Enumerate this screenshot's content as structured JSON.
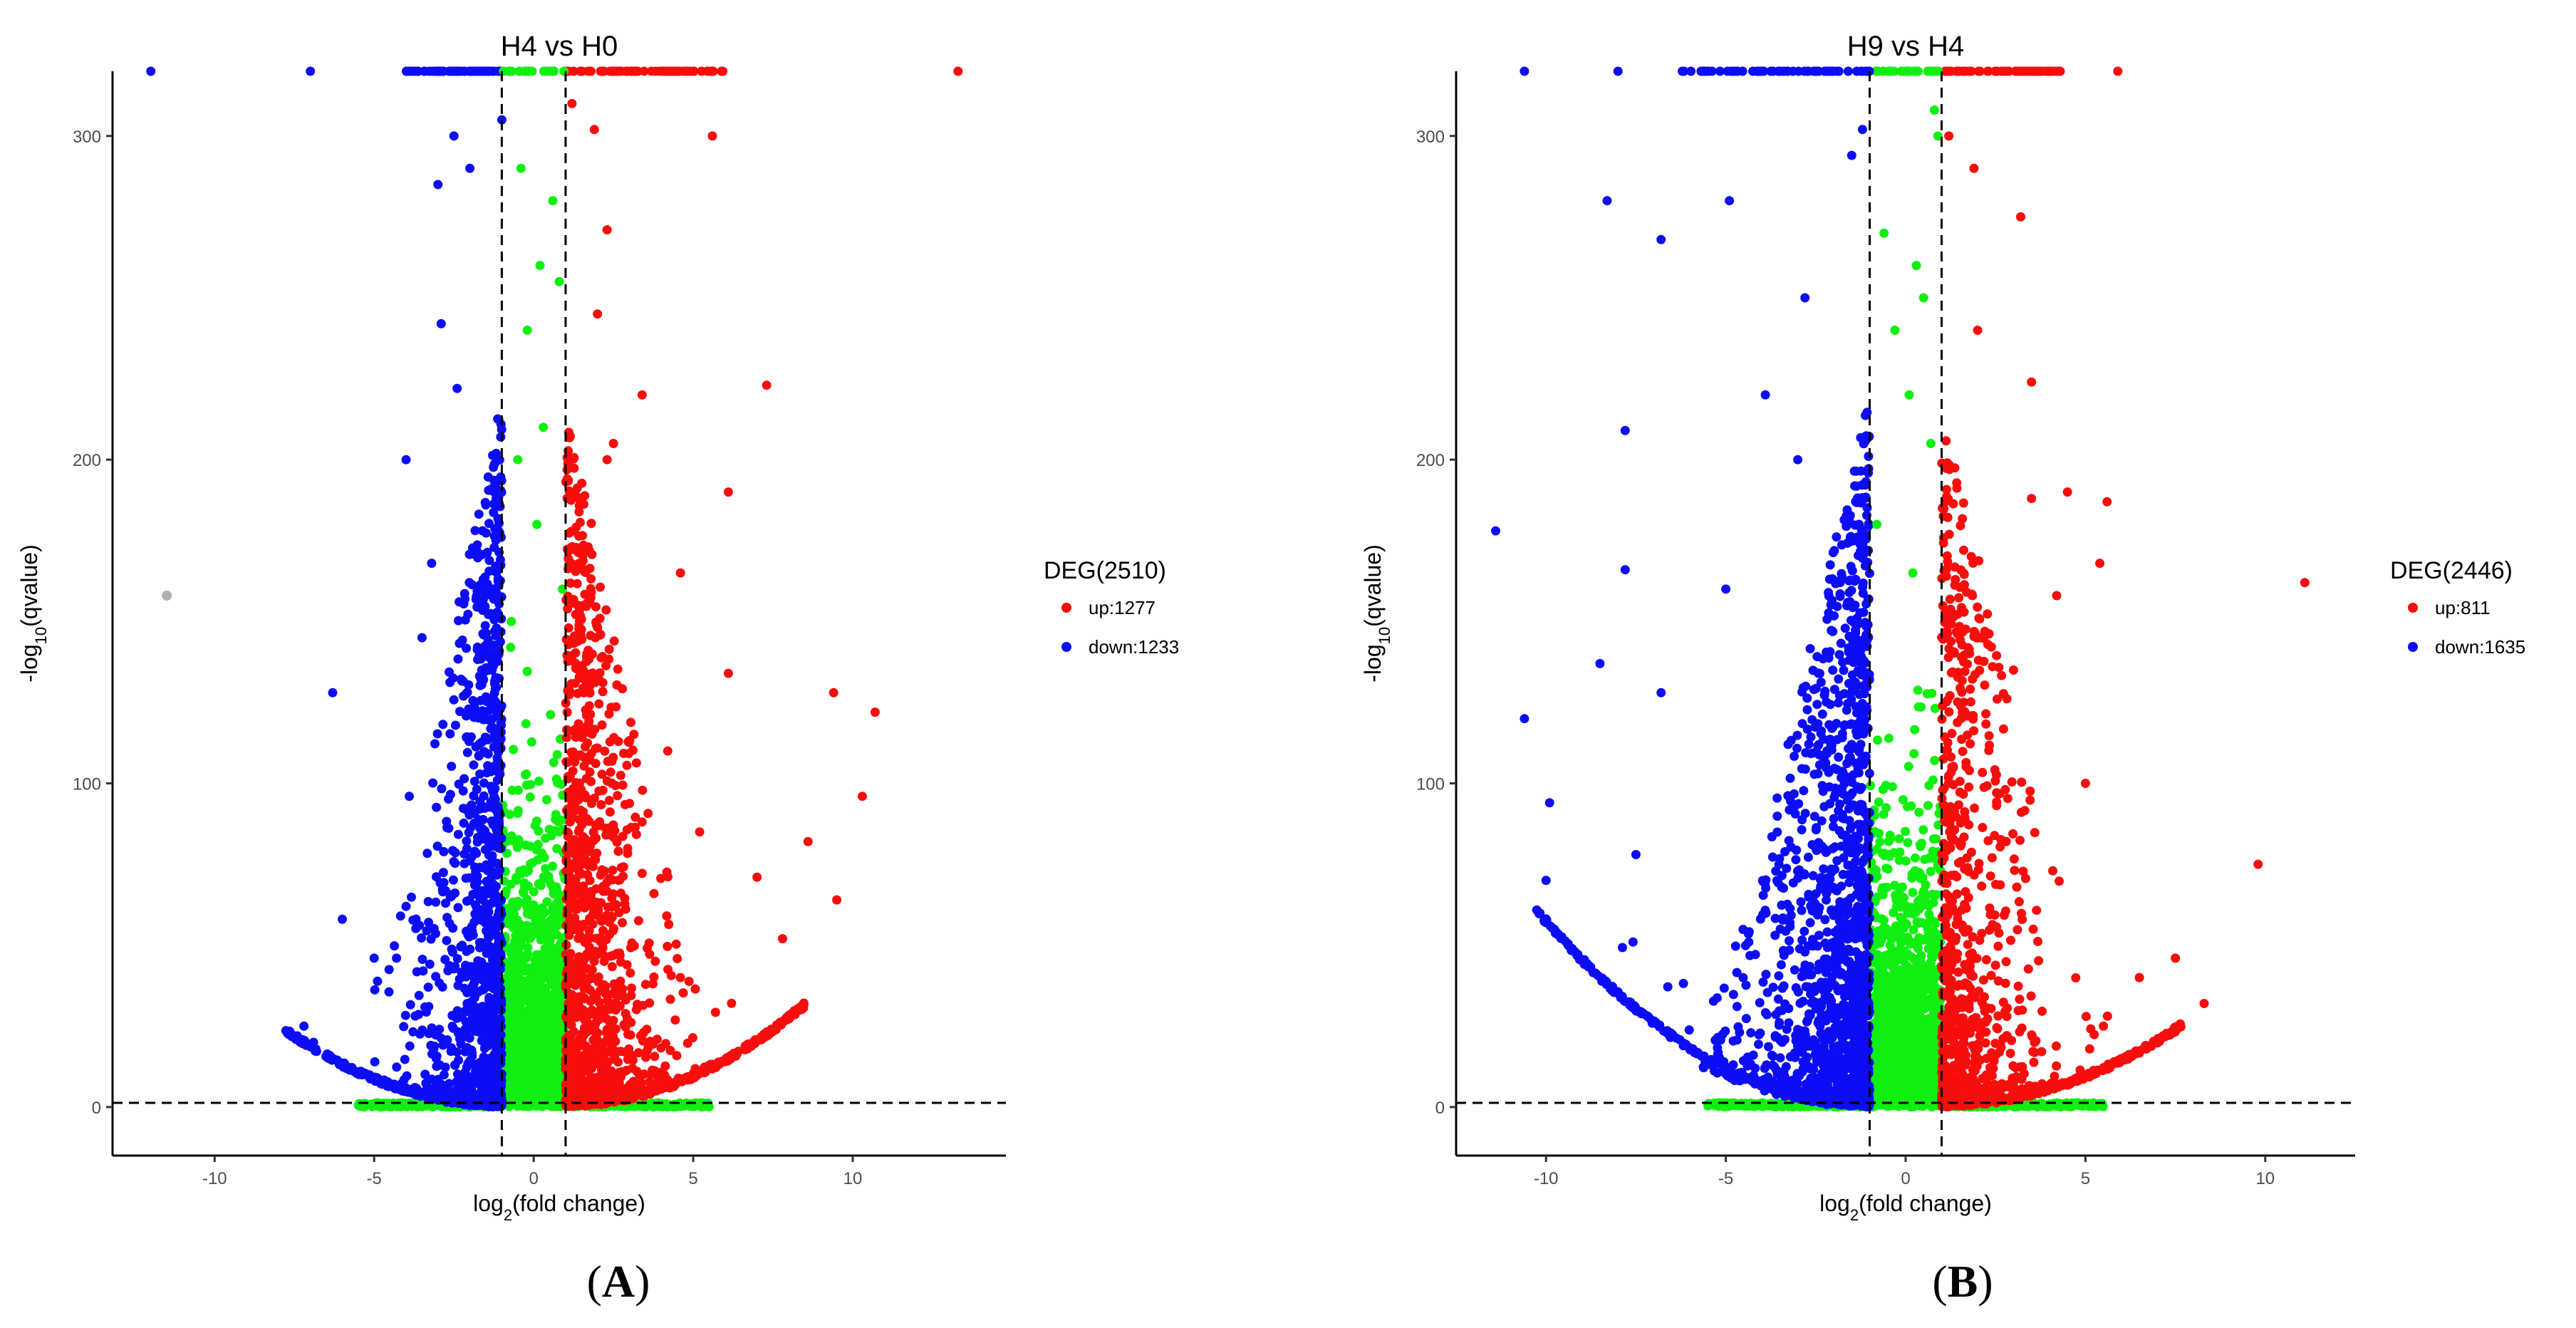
{
  "colors": {
    "up": "#f80d0d",
    "down": "#0d0df5",
    "ns": "#10f010",
    "outlier": "#b0b0b0",
    "axis": "#000000",
    "tick": "#4d4d4d"
  },
  "chart_data": [
    {
      "type": "scatter",
      "panel_label": "A",
      "title": "H4 vs H0",
      "xlabel": "log2(fold change)",
      "ylabel": "-log10(qvalue)",
      "xlim": [
        -13.2,
        14.8
      ],
      "ylim": [
        -15,
        320
      ],
      "xticks": [
        -10,
        -5,
        0,
        5,
        10
      ],
      "yticks": [
        0,
        100,
        200,
        300
      ],
      "fc_threshold": [
        -1,
        1
      ],
      "q_threshold": 1.3,
      "legend": {
        "title": "DEG(2510)",
        "placement": "right",
        "entries": [
          {
            "series": "up",
            "label": "up:1277"
          },
          {
            "series": "down",
            "label": "down:1233"
          }
        ]
      },
      "series": [
        {
          "name": "up",
          "count": 1277,
          "highlights": [
            [
              13.3,
              320
            ],
            [
              5.6,
              300
            ],
            [
              1.9,
              302
            ],
            [
              7.3,
              223
            ],
            [
              6.1,
              190
            ],
            [
              4.6,
              165
            ],
            [
              9.4,
              128
            ],
            [
              10.7,
              122
            ],
            [
              10.3,
              96
            ],
            [
              6.1,
              134
            ],
            [
              8.6,
              82
            ],
            [
              7.0,
              71
            ],
            [
              9.5,
              64
            ],
            [
              7.8,
              52
            ],
            [
              2.3,
              271
            ],
            [
              2.0,
              245
            ],
            [
              3.4,
              220
            ],
            [
              2.5,
              205
            ],
            [
              1.2,
              310
            ],
            [
              2.3,
              200
            ],
            [
              4.2,
              110
            ],
            [
              5.2,
              85
            ]
          ]
        },
        {
          "name": "down",
          "count": 1233,
          "highlights": [
            [
              -12.0,
              320
            ],
            [
              -7.0,
              320
            ],
            [
              -1.0,
              305
            ],
            [
              -2.5,
              300
            ],
            [
              -2.0,
              290
            ],
            [
              -3.0,
              285
            ],
            [
              -2.9,
              242
            ],
            [
              -2.4,
              222
            ],
            [
              -4.0,
              200
            ],
            [
              -3.2,
              168
            ],
            [
              -3.5,
              145
            ],
            [
              -6.3,
              128
            ],
            [
              -3.9,
              96
            ],
            [
              -6.0,
              58
            ],
            [
              -4.0,
              62
            ],
            [
              -4.3,
              46
            ],
            [
              -7.6,
              22
            ],
            [
              -7.2,
              25
            ],
            [
              -6.9,
              20
            ],
            [
              -5.0,
              46
            ]
          ]
        },
        {
          "name": "ns",
          "highlights": [
            [
              -0.4,
              290
            ],
            [
              0.6,
              280
            ],
            [
              0.2,
              260
            ],
            [
              -0.2,
              240
            ],
            [
              0.8,
              255
            ],
            [
              0.3,
              210
            ],
            [
              -0.5,
              200
            ],
            [
              0.1,
              180
            ],
            [
              0.9,
              160
            ],
            [
              -0.7,
              150
            ]
          ]
        }
      ],
      "outliers": [
        [
          -11.5,
          158
        ]
      ]
    },
    {
      "type": "scatter",
      "panel_label": "B",
      "title": "H9 vs H4",
      "xlabel": "log2(fold change)",
      "ylabel": "-log10(qvalue)",
      "xlim": [
        -12.5,
        12.5
      ],
      "ylim": [
        -15,
        320
      ],
      "xticks": [
        -10,
        -5,
        0,
        5,
        10
      ],
      "yticks": [
        0,
        100,
        200,
        300
      ],
      "fc_threshold": [
        -1,
        1
      ],
      "q_threshold": 1.3,
      "legend": {
        "title": "DEG(2446)",
        "placement": "right",
        "entries": [
          {
            "series": "up",
            "label": "up:811"
          },
          {
            "series": "down",
            "label": "down:1635"
          }
        ]
      },
      "series": [
        {
          "name": "up",
          "count": 811,
          "highlights": [
            [
              5.9,
              320
            ],
            [
              1.2,
              300
            ],
            [
              1.9,
              290
            ],
            [
              3.2,
              275
            ],
            [
              2.0,
              240
            ],
            [
              3.5,
              224
            ],
            [
              4.5,
              190
            ],
            [
              5.6,
              187
            ],
            [
              3.5,
              188
            ],
            [
              5.4,
              168
            ],
            [
              11.1,
              162
            ],
            [
              4.2,
              158
            ],
            [
              3.0,
              135
            ],
            [
              5.0,
              100
            ],
            [
              9.8,
              75
            ],
            [
              7.5,
              46
            ],
            [
              8.3,
              32
            ],
            [
              6.5,
              40
            ],
            [
              5.5,
              25
            ]
          ]
        },
        {
          "name": "down",
          "count": 1635,
          "highlights": [
            [
              -10.6,
              320
            ],
            [
              -8.0,
              320
            ],
            [
              -1.2,
              302
            ],
            [
              -1.5,
              294
            ],
            [
              -8.3,
              280
            ],
            [
              -4.9,
              280
            ],
            [
              -6.8,
              268
            ],
            [
              -7.8,
              209
            ],
            [
              -11.4,
              178
            ],
            [
              -7.8,
              166
            ],
            [
              -10.6,
              120
            ],
            [
              -8.5,
              137
            ],
            [
              -6.8,
              128
            ],
            [
              -9.9,
              94
            ],
            [
              -7.5,
              78
            ],
            [
              -10.0,
              70
            ],
            [
              -5.0,
              160
            ],
            [
              -3.9,
              220
            ],
            [
              -2.8,
              250
            ],
            [
              -3.0,
              200
            ]
          ]
        },
        {
          "name": "ns",
          "highlights": [
            [
              0.8,
              308
            ],
            [
              0.9,
              300
            ],
            [
              -0.6,
              270
            ],
            [
              0.3,
              260
            ],
            [
              0.5,
              250
            ],
            [
              -0.3,
              240
            ],
            [
              0.1,
              220
            ],
            [
              0.7,
              205
            ],
            [
              -0.8,
              180
            ],
            [
              0.2,
              165
            ]
          ]
        }
      ],
      "outliers": []
    }
  ]
}
